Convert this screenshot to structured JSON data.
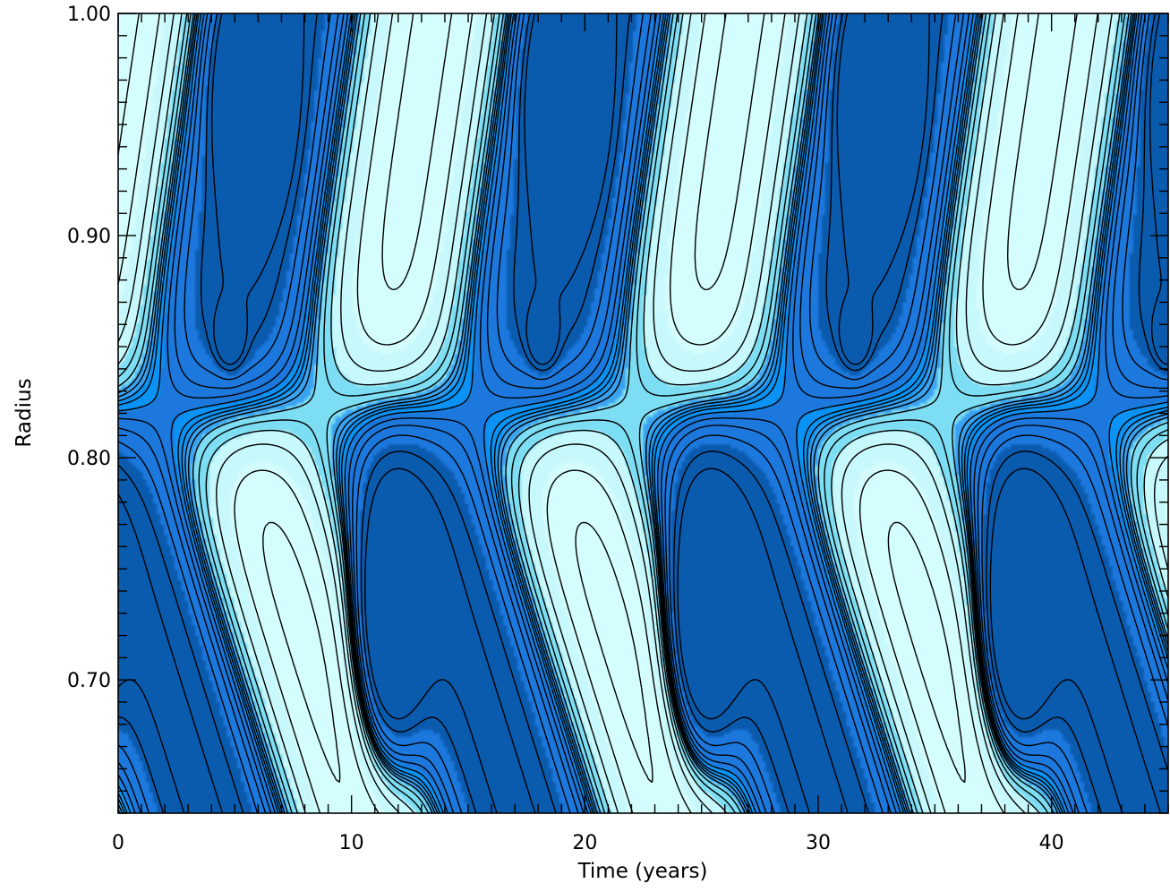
{
  "chart_data": {
    "type": "heatmap",
    "subtype": "filled contour (time-radius diagram)",
    "title": "",
    "xlabel": "Time (years)",
    "ylabel": "Radius",
    "xlim": [
      0,
      45
    ],
    "ylim": [
      0.64,
      1.0
    ],
    "x_major_ticks": [
      0,
      10,
      20,
      30,
      40
    ],
    "x_tick_labels": [
      "0",
      "10",
      "20",
      "30",
      "40"
    ],
    "y_major_ticks": [
      0.7,
      0.8,
      0.9,
      1.0
    ],
    "y_tick_labels": [
      "0.70",
      "0.80",
      "0.90",
      "1.00"
    ],
    "grid": false,
    "legend": "none",
    "period_years": 13.4,
    "contour_levels": [
      -0.88,
      -0.66,
      -0.44,
      -0.3,
      -0.2,
      -0.12,
      -0.06,
      -0.02,
      0.02,
      0.06,
      0.12,
      0.2,
      0.3,
      0.44,
      0.66,
      0.88
    ],
    "fill_colors": {
      "very_low": "#0a5aad",
      "low": "#1c78dd",
      "mid_low": "#0a93f5",
      "band": "#3aa2f0",
      "mid_high": "#7dddf2",
      "high": "#c7f8fb",
      "very_high": "#d4fdfd"
    },
    "features": {
      "dark_minima_upper": [
        {
          "time": 5.8,
          "radius": 0.965
        },
        {
          "time": 19.2,
          "radius": 0.965
        },
        {
          "time": 32.6,
          "radius": 0.965
        }
      ],
      "dark_minima_small": [
        {
          "time": 4.8,
          "radius": 0.855
        },
        {
          "time": 18.2,
          "radius": 0.855
        },
        {
          "time": 31.6,
          "radius": 0.855
        }
      ],
      "dark_minima_lower": [
        {
          "time": 11.6,
          "radius": 0.72
        },
        {
          "time": 25.0,
          "radius": 0.72
        },
        {
          "time": 38.4,
          "radius": 0.72
        }
      ]
    }
  }
}
